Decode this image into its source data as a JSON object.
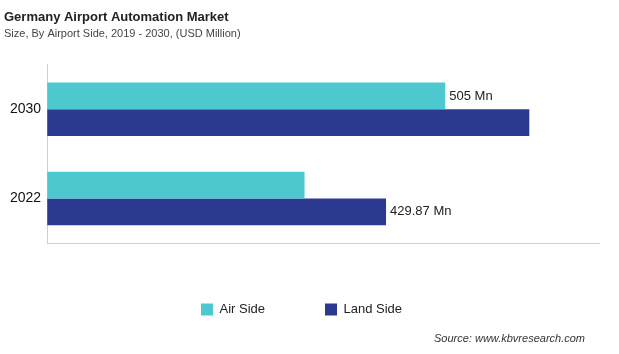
{
  "chart_data": {
    "type": "bar",
    "orientation": "horizontal",
    "title": "Germany Airport Automation Market",
    "subtitle": "Size, By Airport Side, 2019 - 2030, (USD Million)",
    "annotations": [
      "Source: www.kbvresearch.com"
    ],
    "categories": [
      "2030",
      "2022"
    ],
    "series": [
      {
        "name": "Air Side",
        "color": "#4ec8cf",
        "values": [
          505,
          326.5
        ],
        "value_labels": [
          "505 Mn",
          null
        ]
      },
      {
        "name": "Land Side",
        "color": "#2b3990",
        "values": [
          611.6,
          429.87
        ],
        "value_labels": [
          null,
          "429.87 Mn"
        ]
      }
    ],
    "xlim": [
      0,
      700
    ],
    "xticks": [],
    "grid": false,
    "legend": "bottom",
    "data_labels": true,
    "tick_labels": "y"
  }
}
